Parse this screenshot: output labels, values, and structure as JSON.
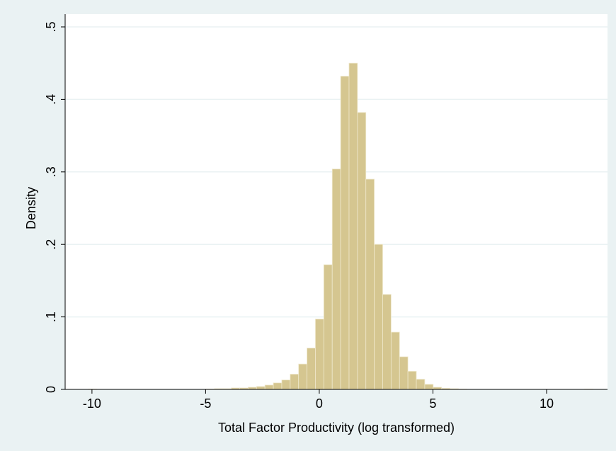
{
  "chart_data": {
    "type": "histogram",
    "x_label": "Total Factor Productivity (log transformed)",
    "y_label": "Density",
    "bins": [
      -10.16,
      -9.79,
      -9.42,
      -9.05,
      -8.68,
      -8.31,
      -7.94,
      -7.57,
      -7.2,
      -6.83,
      -6.46,
      -6.09,
      -5.72,
      -5.35,
      -4.98,
      -4.61,
      -4.24,
      -3.87,
      -3.5,
      -3.13,
      -2.76,
      -2.39,
      -2.02,
      -1.65,
      -1.28,
      -0.91,
      -0.54,
      -0.17,
      0.2,
      0.57,
      0.94,
      1.31,
      1.68,
      2.05,
      2.42,
      2.79,
      3.16,
      3.53,
      3.9,
      4.27,
      4.64,
      5.01,
      5.38,
      5.75,
      6.12,
      6.49,
      6.86,
      7.23,
      7.6,
      7.97,
      8.34,
      8.71,
      9.08,
      9.45,
      9.82,
      10.19,
      10.56,
      10.93,
      11.3,
      11.67,
      12.04
    ],
    "values": [
      0.0005,
      0,
      0,
      0,
      0,
      0,
      0,
      0,
      0,
      0,
      0,
      0,
      0,
      0,
      0.0005,
      0.001,
      0.001,
      0.002,
      0.002,
      0.003,
      0.004,
      0.006,
      0.009,
      0.013,
      0.021,
      0.035,
      0.057,
      0.097,
      0.172,
      0.304,
      0.432,
      0.45,
      0.382,
      0.29,
      0.2,
      0.131,
      0.079,
      0.045,
      0.025,
      0.014,
      0.007,
      0.003,
      0.0015,
      0.001,
      0.0005,
      0,
      0,
      0,
      0,
      0,
      0,
      0,
      0,
      0,
      0,
      0,
      0,
      0,
      0,
      0.0005
    ],
    "color": "#d5c690",
    "xlim": [
      -11.18,
      12.68
    ],
    "xticks": [
      -10,
      -5,
      0,
      5,
      10
    ],
    "ylim": [
      0,
      0.5
    ],
    "yticks": [
      0,
      {
        "value": 0.1,
        "label": ".1"
      },
      {
        "value": 0.2,
        "label": ".2"
      },
      {
        "value": 0.3,
        "label": ".3"
      },
      {
        "value": 0.4,
        "label": ".4"
      },
      {
        "value": 0.5,
        "label": ".5"
      }
    ],
    "grid": true
  }
}
